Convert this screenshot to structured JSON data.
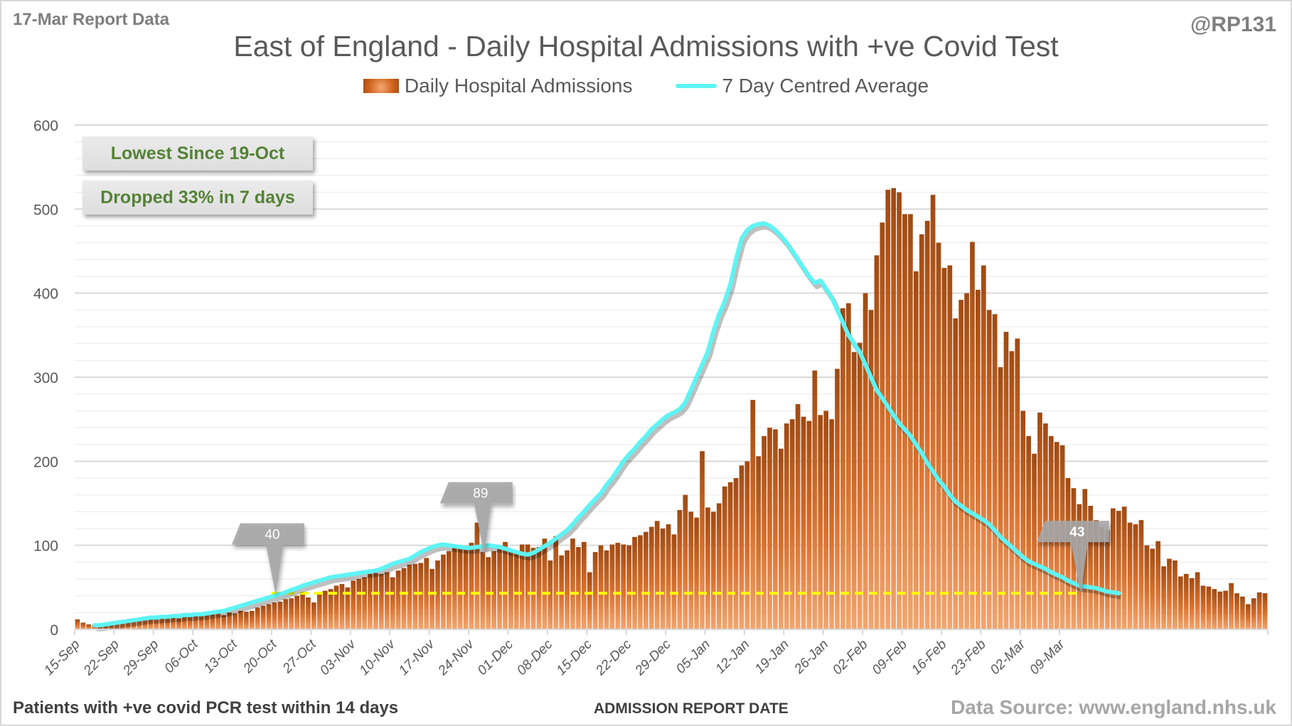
{
  "header": {
    "report_date": "17-Mar Report Data",
    "handle": "@RP131"
  },
  "footer": {
    "note": "Patients with +ve covid PCR test within 14 days",
    "axis_title": "ADMISSION REPORT DATE",
    "source": "Data Source: www.england.nhs.uk"
  },
  "annotations": {
    "lowest_since": "Lowest Since 19-Oct",
    "dropped": "Dropped 33% in 7 days"
  },
  "colors": {
    "bar_dark": "#a04a12",
    "bar_light": "#f0a46a",
    "average_line": "#5ef4f4",
    "reference_line": "#ffff00",
    "callout": "#a6a6a6",
    "note_text": "#548235"
  },
  "chart_data": {
    "type": "bar",
    "title": "East of England - Daily Hospital Admissions with +ve Covid Test",
    "xlabel": "ADMISSION REPORT DATE",
    "ylabel": "",
    "ylim": [
      0,
      600
    ],
    "yticks": [
      0,
      100,
      200,
      300,
      400,
      500,
      600
    ],
    "grid": true,
    "legend_position": "top-center",
    "start_date": "15-Sep",
    "x_tick_labels": [
      "15-Sep",
      "22-Sep",
      "29-Sep",
      "06-Oct",
      "13-Oct",
      "20-Oct",
      "27-Oct",
      "03-Nov",
      "10-Nov",
      "17-Nov",
      "24-Nov",
      "01-Dec",
      "08-Dec",
      "15-Dec",
      "22-Dec",
      "29-Dec",
      "05-Jan",
      "12-Jan",
      "19-Jan",
      "26-Jan",
      "02-Feb",
      "09-Feb",
      "16-Feb",
      "23-Feb",
      "02-Mar",
      "09-Mar"
    ],
    "series": [
      {
        "name": "Daily Hospital Admissions",
        "type": "bar",
        "values": [
          12,
          8,
          6,
          5,
          4,
          5,
          6,
          7,
          9,
          10,
          12,
          13,
          13,
          14,
          15,
          15,
          14,
          16,
          13,
          18,
          17,
          18,
          17,
          19,
          18,
          22,
          17,
          20,
          19,
          22,
          21,
          22,
          26,
          28,
          30,
          32,
          33,
          36,
          37,
          40,
          43,
          38,
          32,
          44,
          46,
          48,
          52,
          54,
          50,
          58,
          60,
          62,
          66,
          67,
          66,
          68,
          62,
          70,
          73,
          77,
          78,
          79,
          85,
          72,
          82,
          89,
          93,
          100,
          98,
          97,
          103,
          127,
          92,
          86,
          93,
          98,
          104,
          93,
          93,
          101,
          101,
          97,
          98,
          108,
          82,
          111,
          88,
          94,
          108,
          98,
          104,
          68,
          92,
          100,
          94,
          101,
          103,
          101,
          100,
          110,
          112,
          116,
          122,
          129,
          120,
          125,
          113,
          142,
          160,
          140,
          133,
          212,
          145,
          140,
          150,
          170,
          175,
          180,
          195,
          200,
          273,
          206,
          230,
          240,
          238,
          215,
          245,
          250,
          268,
          253,
          248,
          308,
          255,
          260,
          250,
          310,
          382,
          388,
          330,
          341,
          400,
          380,
          445,
          484,
          523,
          525,
          520,
          494,
          494,
          426,
          470,
          486,
          517,
          460,
          430,
          433,
          370,
          392,
          400,
          461,
          404,
          433,
          380,
          375,
          312,
          354,
          331,
          346,
          260,
          230,
          209,
          258,
          245,
          230,
          223,
          219,
          180,
          168,
          149,
          167,
          147,
          130,
          122,
          118,
          144,
          141,
          146,
          127,
          125,
          130,
          100,
          96,
          105,
          75,
          84,
          82,
          63,
          66,
          61,
          68,
          52,
          51,
          48,
          45,
          46,
          55,
          43,
          39,
          30,
          37,
          44,
          43
        ],
        "color": "#d16520"
      },
      {
        "name": "7 Day Centred Average",
        "type": "line",
        "start_index": 3,
        "values": [
          5,
          5,
          6,
          7,
          8,
          9,
          10,
          11,
          12,
          13,
          14,
          14,
          15,
          15,
          16,
          16,
          17,
          17,
          18,
          18,
          19,
          20,
          21,
          22,
          24,
          26,
          28,
          30,
          32,
          34,
          36,
          38,
          40,
          42,
          44,
          47,
          49,
          52,
          54,
          56,
          58,
          60,
          62,
          63,
          64,
          65,
          66,
          67,
          68,
          69,
          70,
          72,
          75,
          78,
          80,
          82,
          84,
          88,
          92,
          95,
          98,
          100,
          101,
          100,
          99,
          98,
          97,
          97,
          98,
          99,
          100,
          99,
          98,
          96,
          94,
          92,
          90,
          89,
          91,
          95,
          99,
          103,
          108,
          113,
          118,
          125,
          133,
          140,
          148,
          155,
          162,
          172,
          180,
          190,
          200,
          208,
          215,
          223,
          230,
          238,
          244,
          250,
          255,
          258,
          262,
          270,
          285,
          300,
          315,
          330,
          355,
          375,
          390,
          410,
          440,
          465,
          475,
          480,
          482,
          483,
          480,
          475,
          468,
          460,
          450,
          440,
          430,
          420,
          412,
          415,
          405,
          395,
          380,
          365,
          350,
          340,
          330,
          315,
          300,
          285,
          275,
          265,
          255,
          245,
          238,
          230,
          220,
          210,
          198,
          188,
          178,
          170,
          160,
          152,
          147,
          142,
          138,
          134,
          130,
          125,
          118,
          110,
          104,
          98,
          92,
          86,
          81,
          78,
          75,
          72,
          68,
          65,
          62,
          58,
          55,
          52,
          51,
          50,
          49,
          47,
          45,
          44,
          43
        ],
        "color": "#5ef4f4"
      }
    ],
    "reference_line": {
      "value": 43,
      "label": "43",
      "style": "dashed",
      "color": "#ffff00"
    },
    "callouts": [
      {
        "date_index": 35,
        "value": 40,
        "label": "40"
      },
      {
        "date_index": 72,
        "value": 89,
        "label": "89"
      },
      {
        "date_index": 178,
        "value": 43,
        "label": "43"
      }
    ]
  }
}
